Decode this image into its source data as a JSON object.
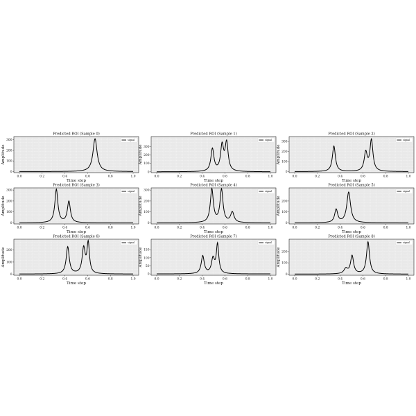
{
  "chart_data": [
    {
      "type": "line",
      "title": "Predicted ROI (Sample 0)",
      "xlabel": "Time step",
      "ylabel": "Amplitude",
      "xlim": [
        0,
        1
      ],
      "ylim": [
        -10,
        330
      ],
      "xticks": [
        "0.0",
        "0.2",
        "0.4",
        "0.6",
        "0.8",
        "1.0"
      ],
      "yticks": [
        "0",
        "100",
        "200",
        "300"
      ],
      "grid": true,
      "legend": "top-right",
      "series": [
        {
          "name": "signal",
          "color": "#000000",
          "peaks": [
            {
              "center": 0.665,
              "height": 310,
              "width": 0.022
            }
          ]
        }
      ]
    },
    {
      "type": "line",
      "title": "Predicted ROI (Sample 1)",
      "xlabel": "Time step",
      "ylabel": "Amplitude",
      "xlim": [
        0,
        1
      ],
      "ylim": [
        -10,
        420
      ],
      "xticks": [
        "0.0",
        "0.2",
        "0.4",
        "0.6",
        "0.8",
        "1.0"
      ],
      "yticks": [
        "0",
        "100",
        "200",
        "300"
      ],
      "grid": true,
      "legend": "top-right",
      "series": [
        {
          "name": "signal",
          "color": "#000000",
          "peaks": [
            {
              "center": 0.49,
              "height": 270,
              "width": 0.016
            },
            {
              "center": 0.575,
              "height": 300,
              "width": 0.016
            },
            {
              "center": 0.615,
              "height": 335,
              "width": 0.016
            }
          ]
        }
      ]
    },
    {
      "type": "line",
      "title": "Predicted ROI (Sample 2)",
      "xlabel": "Time step",
      "ylabel": "Amplitude",
      "xlim": [
        0,
        1
      ],
      "ylim": [
        -10,
        350
      ],
      "xticks": [
        "0.0",
        "0.2",
        "0.4",
        "0.6",
        "0.8",
        "1.0"
      ],
      "yticks": [
        "0",
        "100",
        "200",
        "300"
      ],
      "grid": true,
      "legend": "top-right",
      "series": [
        {
          "name": "signal",
          "color": "#000000",
          "peaks": [
            {
              "center": 0.345,
              "height": 255,
              "width": 0.016
            },
            {
              "center": 0.625,
              "height": 185,
              "width": 0.016
            },
            {
              "center": 0.675,
              "height": 310,
              "width": 0.016
            }
          ]
        }
      ]
    },
    {
      "type": "line",
      "title": "Predicted ROI (Sample 3)",
      "xlabel": "Time step",
      "ylabel": "Amplitude",
      "xlim": [
        0,
        1
      ],
      "ylim": [
        -10,
        320
      ],
      "xticks": [
        "0.0",
        "0.2",
        "0.4",
        "0.6",
        "0.8",
        "1.0"
      ],
      "yticks": [
        "0",
        "100",
        "200",
        "300"
      ],
      "grid": true,
      "legend": "top-right",
      "series": [
        {
          "name": "signal",
          "color": "#000000",
          "peaks": [
            {
              "center": 0.325,
              "height": 305,
              "width": 0.016
            },
            {
              "center": 0.435,
              "height": 195,
              "width": 0.016
            }
          ]
        }
      ]
    },
    {
      "type": "line",
      "title": "Predicted ROI (Sample 4)",
      "xlabel": "Time step",
      "ylabel": "Amplitude",
      "xlim": [
        0,
        1
      ],
      "ylim": [
        -10,
        320
      ],
      "xticks": [
        "0.0",
        "0.2",
        "0.4",
        "0.6",
        "0.8",
        "1.0"
      ],
      "yticks": [
        "0",
        "100",
        "200",
        "300"
      ],
      "grid": true,
      "legend": "top-right",
      "series": [
        {
          "name": "signal",
          "color": "#000000",
          "peaks": [
            {
              "center": 0.485,
              "height": 305,
              "width": 0.016
            },
            {
              "center": 0.57,
              "height": 300,
              "width": 0.016
            },
            {
              "center": 0.665,
              "height": 95,
              "width": 0.018
            }
          ]
        }
      ]
    },
    {
      "type": "line",
      "title": "Predicted ROI (Sample 5)",
      "xlabel": "Time step",
      "ylabel": "Amplitude",
      "xlim": [
        0,
        1
      ],
      "ylim": [
        -10,
        320
      ],
      "xticks": [
        "0.0",
        "0.2",
        "0.4",
        "0.6",
        "0.8",
        "1.0"
      ],
      "yticks": [
        "0",
        "100",
        "200"
      ],
      "grid": true,
      "legend": "top-right",
      "series": [
        {
          "name": "signal",
          "color": "#000000",
          "peaks": [
            {
              "center": 0.365,
              "height": 120,
              "width": 0.016
            },
            {
              "center": 0.475,
              "height": 280,
              "width": 0.02
            }
          ]
        }
      ]
    },
    {
      "type": "line",
      "title": "Predicted ROI (Sample 6)",
      "xlabel": "Time step",
      "ylabel": "Amplitude",
      "xlim": [
        0,
        1
      ],
      "ylim": [
        -10,
        290
      ],
      "xticks": [
        "0.0",
        "0.2",
        "0.4",
        "0.6",
        "0.8",
        "1.0"
      ],
      "yticks": [
        "0",
        "100",
        "200"
      ],
      "grid": true,
      "legend": "top-right",
      "series": [
        {
          "name": "signal",
          "color": "#000000",
          "peaks": [
            {
              "center": 0.425,
              "height": 225,
              "width": 0.016
            },
            {
              "center": 0.565,
              "height": 210,
              "width": 0.016
            },
            {
              "center": 0.605,
              "height": 250,
              "width": 0.013
            }
          ]
        }
      ]
    },
    {
      "type": "line",
      "title": "Predicted ROI (Sample 7)",
      "xlabel": "Time step",
      "ylabel": "Amplitude",
      "xlim": [
        0,
        1
      ],
      "ylim": [
        -8,
        215
      ],
      "xticks": [
        "0.0",
        "0.2",
        "0.4",
        "0.6",
        "0.8",
        "1.0"
      ],
      "yticks": [
        "0",
        "50",
        "100",
        "150"
      ],
      "grid": true,
      "legend": "top-right",
      "series": [
        {
          "name": "signal",
          "color": "#000000",
          "peaks": [
            {
              "center": 0.405,
              "height": 110,
              "width": 0.016
            },
            {
              "center": 0.495,
              "height": 90,
              "width": 0.016
            },
            {
              "center": 0.535,
              "height": 180,
              "width": 0.013
            }
          ]
        }
      ]
    },
    {
      "type": "line",
      "title": "Predicted ROI (Sample 8)",
      "xlabel": "Time step",
      "ylabel": "Amplitude",
      "xlim": [
        0,
        1
      ],
      "ylim": [
        -10,
        310
      ],
      "xticks": [
        "0.0",
        "0.2",
        "0.4",
        "0.6",
        "0.8",
        "1.0"
      ],
      "yticks": [
        "0",
        "100",
        "200"
      ],
      "grid": true,
      "legend": "top-right",
      "series": [
        {
          "name": "signal",
          "color": "#000000",
          "peaks": [
            {
              "center": 0.45,
              "height": 45,
              "width": 0.02
            },
            {
              "center": 0.505,
              "height": 160,
              "width": 0.016
            },
            {
              "center": 0.645,
              "height": 285,
              "width": 0.016
            }
          ]
        }
      ]
    }
  ]
}
